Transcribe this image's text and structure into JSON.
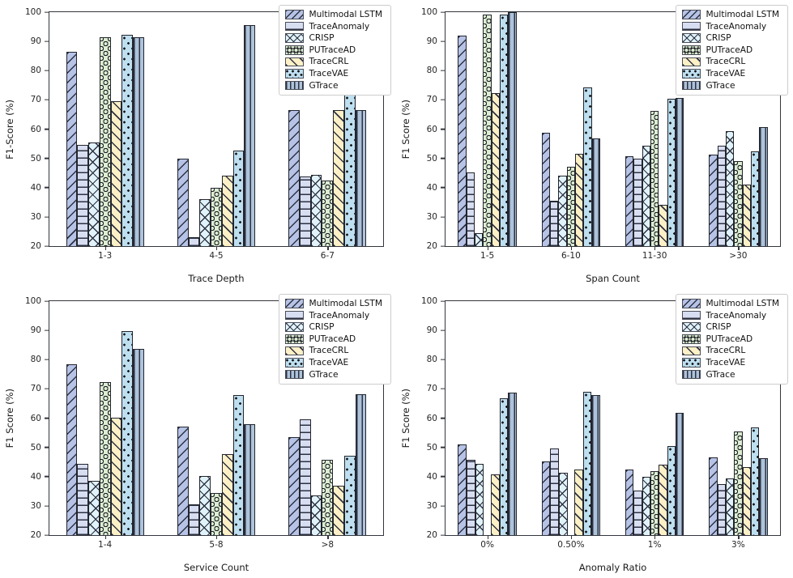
{
  "page": {
    "background": "#ffffff",
    "edge_color": "#23252d"
  },
  "series_style": [
    {
      "name": "Multimodal LSTM",
      "fill": "#b6c3e6",
      "hatch": "/"
    },
    {
      "name": "TraceAnomaly",
      "fill": "#d8def2",
      "hatch": "-"
    },
    {
      "name": "CRISP",
      "fill": "#e1f3fa",
      "hatch": "x"
    },
    {
      "name": "PUTraceAD",
      "fill": "#dcedd3",
      "hatch": "o"
    },
    {
      "name": "TraceCRL",
      "fill": "#fdf0c6",
      "hatch": "\\"
    },
    {
      "name": "TraceVAE",
      "fill": "#bedff0",
      "hatch": "."
    },
    {
      "name": "GTrace",
      "fill": "#adc3da",
      "hatch": "|"
    }
  ],
  "chart_data": [
    {
      "type": "bar",
      "title": "",
      "xlabel": "Trace Depth",
      "ylabel": "F1-Score (%)",
      "ylim": [
        20,
        100
      ],
      "yticks": [
        20,
        30,
        40,
        50,
        60,
        70,
        80,
        90,
        100
      ],
      "grid": false,
      "legend_position": "top-right",
      "categories": [
        "1-3",
        "4-5",
        "6-7"
      ],
      "series": [
        {
          "name": "Multimodal LSTM",
          "values": [
            86.5,
            50.0,
            66.5
          ]
        },
        {
          "name": "TraceAnomaly",
          "values": [
            54.5,
            23.0,
            43.8
          ]
        },
        {
          "name": "CRISP",
          "values": [
            55.5,
            36.0,
            44.5
          ]
        },
        {
          "name": "PUTraceAD",
          "values": [
            91.5,
            39.8,
            42.5
          ]
        },
        {
          "name": "TraceCRL",
          "values": [
            69.5,
            44.0,
            66.5
          ]
        },
        {
          "name": "TraceVAE",
          "values": [
            92.3,
            52.8,
            82.5
          ]
        },
        {
          "name": "GTrace",
          "values": [
            91.5,
            95.5,
            66.5
          ]
        }
      ]
    },
    {
      "type": "bar",
      "title": "",
      "xlabel": "Span Count",
      "ylabel": "F1 Score (%)",
      "ylim": [
        20,
        100
      ],
      "yticks": [
        20,
        30,
        40,
        50,
        60,
        70,
        80,
        90,
        100
      ],
      "grid": false,
      "legend_position": "top-right",
      "categories": [
        "1-5",
        "6-10",
        "11-30",
        ">30"
      ],
      "series": [
        {
          "name": "Multimodal LSTM",
          "values": [
            92.0,
            58.7,
            50.8,
            51.2
          ]
        },
        {
          "name": "TraceAnomaly",
          "values": [
            45.3,
            35.5,
            50.0,
            54.3
          ]
        },
        {
          "name": "CRISP",
          "values": [
            24.3,
            44.0,
            54.2,
            59.3
          ]
        },
        {
          "name": "PUTraceAD",
          "values": [
            99.2,
            47.0,
            66.2,
            49.0
          ]
        },
        {
          "name": "TraceCRL",
          "values": [
            72.3,
            51.5,
            34.0,
            41.0
          ]
        },
        {
          "name": "TraceVAE",
          "values": [
            99.3,
            74.2,
            70.3,
            52.3
          ]
        },
        {
          "name": "GTrace",
          "values": [
            100.0,
            56.7,
            70.8,
            60.8
          ]
        }
      ]
    },
    {
      "type": "bar",
      "title": "",
      "xlabel": "Service Count",
      "ylabel": "F1 Score (%)",
      "ylim": [
        20,
        100
      ],
      "yticks": [
        20,
        30,
        40,
        50,
        60,
        70,
        80,
        90,
        100
      ],
      "grid": false,
      "legend_position": "top-right",
      "categories": [
        "1-4",
        "5-8",
        ">8"
      ],
      "series": [
        {
          "name": "Multimodal LSTM",
          "values": [
            78.3,
            57.2,
            53.5
          ]
        },
        {
          "name": "TraceAnomaly",
          "values": [
            44.3,
            30.5,
            59.5
          ]
        },
        {
          "name": "CRISP",
          "values": [
            38.5,
            40.3,
            33.5
          ]
        },
        {
          "name": "PUTraceAD",
          "values": [
            72.3,
            34.5,
            45.8
          ]
        },
        {
          "name": "TraceCRL",
          "values": [
            60.2,
            47.8,
            37.0
          ]
        },
        {
          "name": "TraceVAE",
          "values": [
            89.8,
            68.0,
            47.0
          ]
        },
        {
          "name": "GTrace",
          "values": [
            83.6,
            57.8,
            68.2
          ]
        }
      ]
    },
    {
      "type": "bar",
      "title": "",
      "xlabel": "Anomaly Ratio",
      "ylabel": "F1 Score (%)",
      "ylim": [
        20,
        100
      ],
      "yticks": [
        20,
        30,
        40,
        50,
        60,
        70,
        80,
        90,
        100
      ],
      "grid": false,
      "legend_position": "top-right",
      "categories": [
        "0%",
        "0.50%",
        "1%",
        "3%"
      ],
      "series": [
        {
          "name": "Multimodal LSTM",
          "values": [
            51.0,
            45.3,
            42.3,
            46.5
          ]
        },
        {
          "name": "TraceAnomaly",
          "values": [
            45.8,
            49.5,
            35.3,
            37.5
          ]
        },
        {
          "name": "CRISP",
          "values": [
            44.3,
            41.3,
            40.0,
            39.5
          ]
        },
        {
          "name": "PUTraceAD",
          "values": [
            null,
            null,
            42.0,
            55.3
          ]
        },
        {
          "name": "TraceCRL",
          "values": [
            40.8,
            42.5,
            44.0,
            43.2
          ]
        },
        {
          "name": "TraceVAE",
          "values": [
            66.7,
            69.0,
            50.5,
            56.7
          ]
        },
        {
          "name": "GTrace",
          "values": [
            68.8,
            67.8,
            61.8,
            46.2
          ]
        }
      ]
    }
  ]
}
